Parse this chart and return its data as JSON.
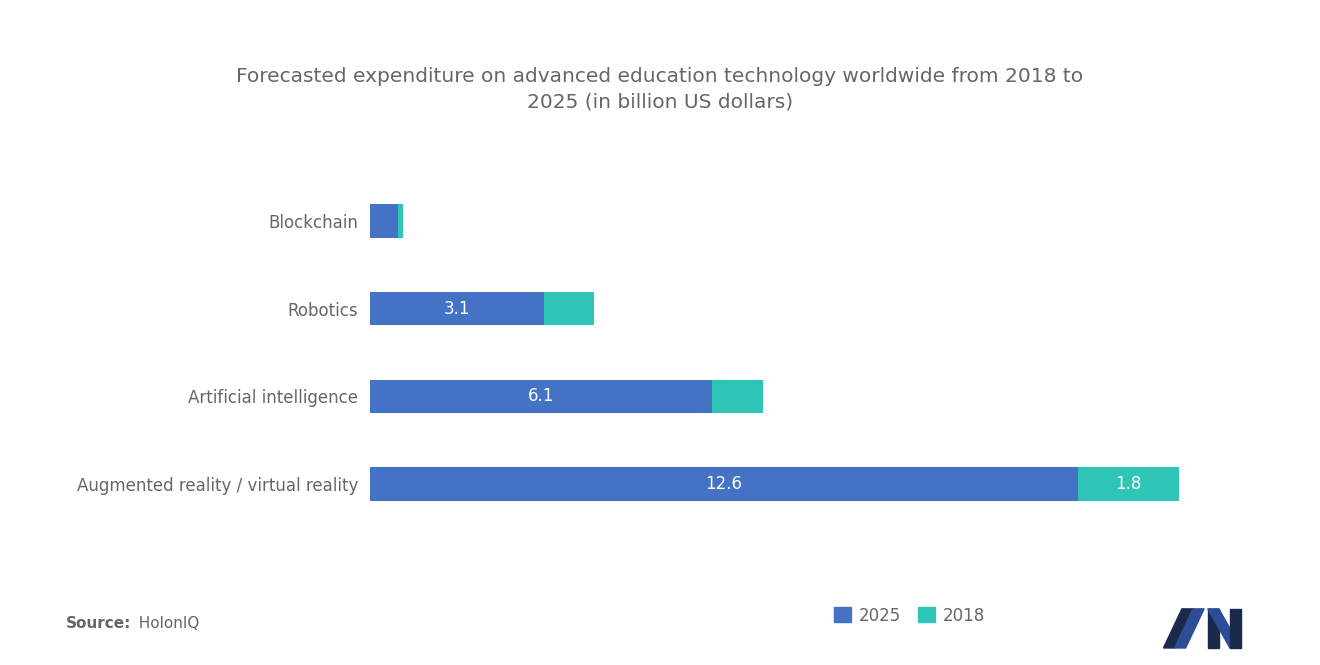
{
  "title": "Forecasted expenditure on advanced education technology worldwide from 2018 to\n2025 (in billion US dollars)",
  "categories": [
    "Augmented reality / virtual reality",
    "Artificial intelligence",
    "Robotics",
    "Blockchain"
  ],
  "values_2025": [
    12.6,
    6.1,
    3.1,
    0.5
  ],
  "values_2018": [
    1.8,
    0.9,
    0.9,
    0.1
  ],
  "color_2025": "#4472C4",
  "color_2018": "#2EC4B6",
  "label_2025": "2025",
  "label_2018": "2018",
  "bar_label_2025": [
    "12.6",
    "6.1",
    "3.1",
    ""
  ],
  "bar_label_2018": [
    "1.8",
    "",
    "",
    ""
  ],
  "source_bold": "Source:",
  "source_normal": "  HolonIQ",
  "background_color": "#FFFFFF",
  "text_color": "#666666",
  "title_fontsize": 14.5,
  "tick_fontsize": 12,
  "bar_value_fontsize": 12,
  "legend_fontsize": 12,
  "source_fontsize": 11,
  "bar_height": 0.38,
  "xlim": [
    0,
    15.5
  ]
}
